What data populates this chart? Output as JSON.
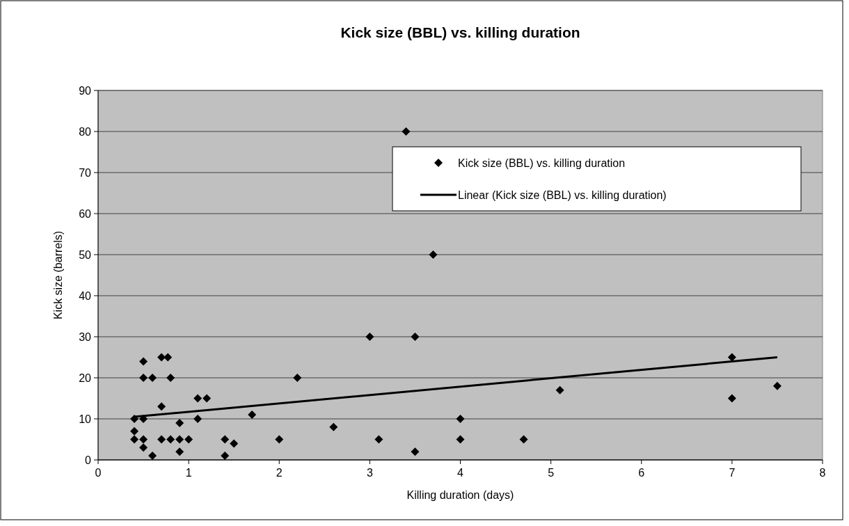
{
  "chart_data": {
    "type": "scatter",
    "title": "Kick size (BBL) vs. killing duration",
    "xlabel": "Killing duration (days)",
    "ylabel": "Kick size (barrels)",
    "xlim": [
      0,
      8
    ],
    "xticks": [
      0,
      1,
      2,
      3,
      4,
      5,
      6,
      7,
      8
    ],
    "ylim": [
      0,
      90
    ],
    "yticks": [
      0,
      10,
      20,
      30,
      40,
      50,
      60,
      70,
      80,
      90
    ],
    "grid": "y",
    "legend": "top right",
    "series": [
      {
        "name": "Kick size (BBL) vs. killing duration",
        "marker": "diamond",
        "color": "#000000",
        "x": [
          0.4,
          0.4,
          0.4,
          0.5,
          0.5,
          0.5,
          0.5,
          0.5,
          0.6,
          0.6,
          0.7,
          0.7,
          0.7,
          0.77,
          0.8,
          0.8,
          0.9,
          0.9,
          0.9,
          1,
          1.1,
          1.1,
          1.2,
          1.4,
          1.4,
          1.5,
          1.7,
          2,
          2.2,
          2.6,
          3,
          3.1,
          3.4,
          3.5,
          3.5,
          3.7,
          4,
          4,
          4.7,
          5.1,
          7,
          7,
          7.5
        ],
        "values": [
          10,
          7,
          5,
          24,
          20,
          10,
          5,
          3,
          20,
          1,
          25,
          13,
          5,
          25,
          20,
          5,
          9,
          5,
          2,
          5,
          15,
          10,
          15,
          5,
          1,
          4,
          11,
          5,
          20,
          8,
          30,
          5,
          80,
          30,
          2,
          50,
          10,
          5,
          5,
          17,
          25,
          15,
          18
        ]
      },
      {
        "name": "Linear (Kick size (BBL) vs. killing duration)",
        "type": "line",
        "marker": "none",
        "line_style": "solid",
        "color": "#000000",
        "x": [
          0.4,
          7.5
        ],
        "values": [
          10.5,
          25
        ]
      }
    ]
  }
}
